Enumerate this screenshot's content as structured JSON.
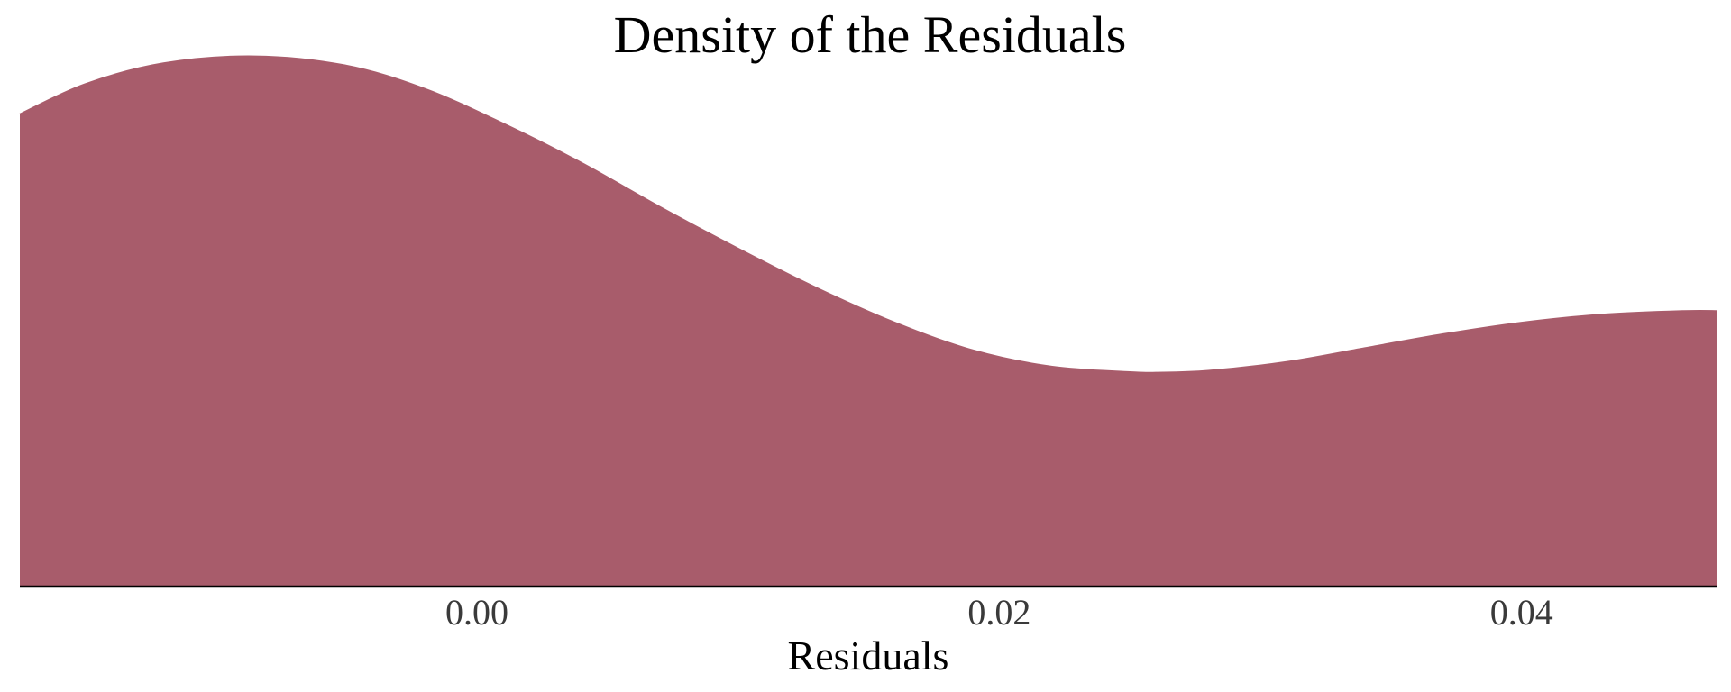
{
  "chart_data": {
    "type": "area",
    "title": "Density of the Residuals",
    "xlabel": "Residuals",
    "ylabel": "",
    "xlim": [
      -0.0175,
      0.0475
    ],
    "ylim": [
      0,
      11.5
    ],
    "x_ticks": [
      0.0,
      0.02,
      0.04
    ],
    "x_tick_labels": [
      "0.00",
      "0.02",
      "0.04"
    ],
    "grid": false,
    "fill_color": "#a85c6b",
    "axis_color": "#000000",
    "series": [
      {
        "x": [
          -0.0175,
          -0.015,
          -0.012,
          -0.0085,
          -0.005,
          -0.002,
          0.001,
          0.004,
          0.007,
          0.01,
          0.013,
          0.016,
          0.019,
          0.022,
          0.025,
          0.026,
          0.028,
          0.031,
          0.034,
          0.037,
          0.04,
          0.043,
          0.0462,
          0.0475
        ],
        "values": [
          10.2,
          10.85,
          11.3,
          11.45,
          11.25,
          10.75,
          10.0,
          9.15,
          8.2,
          7.3,
          6.45,
          5.7,
          5.1,
          4.75,
          4.63,
          4.62,
          4.66,
          4.85,
          5.15,
          5.45,
          5.7,
          5.87,
          5.95,
          5.95
        ]
      }
    ]
  }
}
